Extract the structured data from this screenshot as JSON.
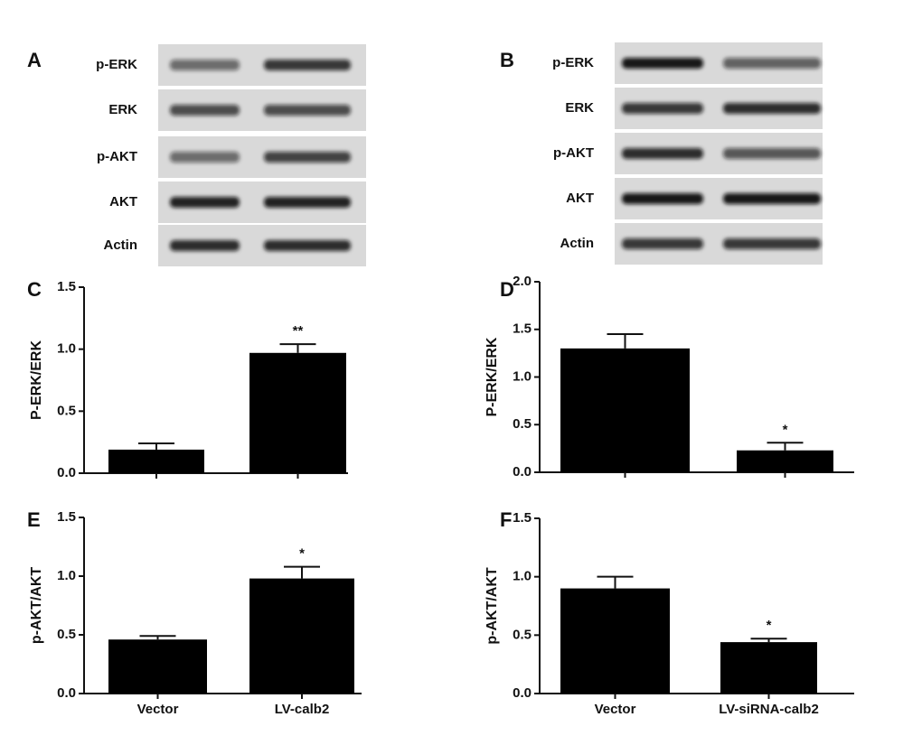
{
  "blots": [
    {
      "panel": "A",
      "rows": [
        "p-ERK",
        "ERK",
        "p-AKT",
        "AKT",
        "Actin"
      ]
    },
    {
      "panel": "B",
      "rows": [
        "p-ERK",
        "ERK",
        "p-AKT",
        "AKT",
        "Actin"
      ]
    }
  ],
  "chart_data": [
    {
      "type": "bar",
      "panel": "C",
      "ylabel": "P-ERK/ERK",
      "categories": [
        null,
        null
      ],
      "values": [
        0.19,
        0.97
      ],
      "errors": [
        0.05,
        0.07
      ],
      "significance": [
        null,
        "**"
      ],
      "color": "#000000",
      "ylim": [
        0,
        1.5
      ],
      "yticks": [
        {
          "value": 0,
          "label": "0.0"
        },
        0.5,
        {
          "value": 1,
          "label": "1.0"
        },
        1.5
      ]
    },
    {
      "type": "bar",
      "panel": "D",
      "ylabel": "P-ERK/ERK",
      "categories": [
        null,
        null
      ],
      "values": [
        1.3,
        0.23
      ],
      "errors": [
        0.15,
        0.08
      ],
      "significance": [
        null,
        "*"
      ],
      "color": "#000000",
      "ylim": [
        0,
        2
      ],
      "yticks": [
        {
          "value": 0,
          "label": "0.0"
        },
        0.5,
        {
          "value": 1,
          "label": "1.0"
        },
        1.5,
        {
          "value": 2,
          "label": "2.0"
        }
      ]
    },
    {
      "type": "bar",
      "panel": "E",
      "ylabel": "p-AKT/AKT",
      "categories": [
        "Vector",
        "LV-calb2"
      ],
      "values": [
        0.46,
        0.98
      ],
      "errors": [
        0.03,
        0.1
      ],
      "significance": [
        null,
        "*"
      ],
      "color": "#000000",
      "ylim": [
        0,
        1.5
      ],
      "yticks": [
        {
          "value": 0,
          "label": "0.0"
        },
        0.5,
        {
          "value": 1,
          "label": "1.0"
        },
        1.5
      ]
    },
    {
      "type": "bar",
      "panel": "F",
      "ylabel": "p-AKT/AKT",
      "categories": [
        "Vector",
        "LV-siRNA-calb2"
      ],
      "values": [
        0.9,
        0.44
      ],
      "errors": [
        0.1,
        0.03
      ],
      "significance": [
        null,
        "*"
      ],
      "color": "#000000",
      "ylim": [
        0,
        1.5
      ],
      "yticks": [
        {
          "value": 0,
          "label": "0.0"
        },
        0.5,
        {
          "value": 1,
          "label": "1.0"
        },
        1.5
      ]
    }
  ]
}
